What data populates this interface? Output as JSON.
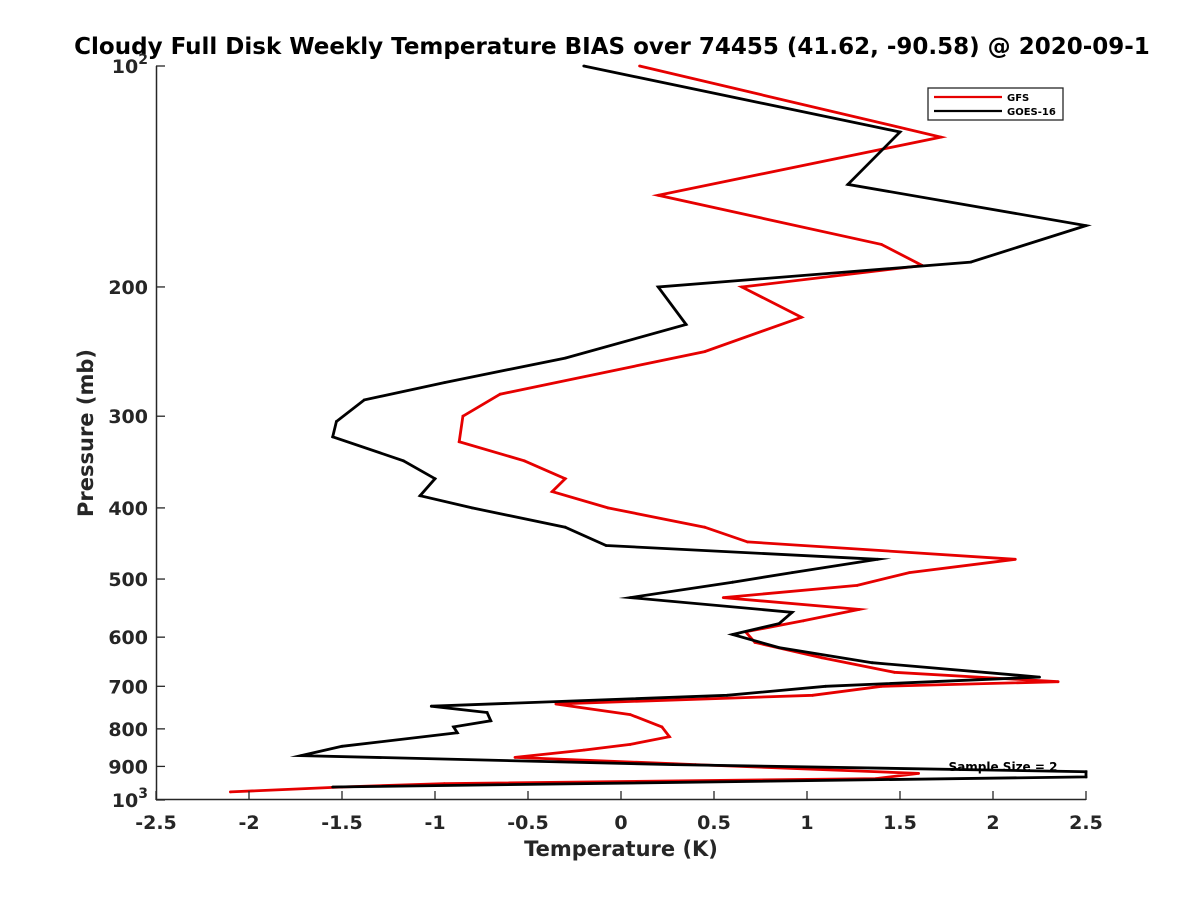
{
  "chart_data": {
    "type": "line",
    "title": "Cloudy Full Disk Weekly Temperature BIAS over 74455 (41.62, -90.58) @ 2020-09-1",
    "xlabel": "Temperature (K)",
    "ylabel": "Pressure (mb)",
    "xlim": [
      -2.5,
      2.5
    ],
    "ylim": [
      100,
      1000
    ],
    "yscale": "log",
    "y_reversed": true,
    "grid": false,
    "legend_position": "top-right",
    "xticks": [
      -2.5,
      -2,
      -1.5,
      -1,
      -0.5,
      0,
      0.5,
      1,
      1.5,
      2,
      2.5
    ],
    "xtick_labels": [
      "-2.5",
      "-2",
      "-1.5",
      "-1",
      "-0.5",
      "0",
      "0.5",
      "1",
      "1.5",
      "2",
      "2.5"
    ],
    "yticks": [
      100,
      200,
      300,
      400,
      500,
      600,
      700,
      800,
      900,
      1000
    ],
    "ytick_labels": [
      {
        "base": "10",
        "exp": "2"
      },
      {
        "base": "200",
        "exp": ""
      },
      {
        "base": "300",
        "exp": ""
      },
      {
        "base": "400",
        "exp": ""
      },
      {
        "base": "500",
        "exp": ""
      },
      {
        "base": "600",
        "exp": ""
      },
      {
        "base": "700",
        "exp": ""
      },
      {
        "base": "800",
        "exp": ""
      },
      {
        "base": "900",
        "exp": ""
      },
      {
        "base": "10",
        "exp": "3"
      }
    ],
    "annotation": "Sample Size = 2",
    "series": [
      {
        "name": "GFS",
        "color": "#e60000",
        "points": [
          [
            0.1,
            100
          ],
          [
            1.72,
            125
          ],
          [
            0.2,
            150
          ],
          [
            1.4,
            175
          ],
          [
            1.62,
            187
          ],
          [
            0.65,
            200
          ],
          [
            0.97,
            220
          ],
          [
            0.45,
            245
          ],
          [
            -0.65,
            280
          ],
          [
            -0.85,
            300
          ],
          [
            -0.87,
            325
          ],
          [
            -0.52,
            345
          ],
          [
            -0.3,
            365
          ],
          [
            -0.37,
            380
          ],
          [
            -0.07,
            400
          ],
          [
            0.45,
            425
          ],
          [
            0.68,
            445
          ],
          [
            2.12,
            470
          ],
          [
            1.55,
            490
          ],
          [
            1.27,
            510
          ],
          [
            0.55,
            530
          ],
          [
            1.28,
            550
          ],
          [
            0.98,
            570
          ],
          [
            0.67,
            590
          ],
          [
            0.72,
            610
          ],
          [
            1.08,
            640
          ],
          [
            1.47,
            670
          ],
          [
            2.35,
            690
          ],
          [
            1.4,
            700
          ],
          [
            1.03,
            720
          ],
          [
            -0.35,
            740
          ],
          [
            0.05,
            765
          ],
          [
            0.22,
            795
          ],
          [
            0.26,
            820
          ],
          [
            0.05,
            840
          ],
          [
            -0.2,
            855
          ],
          [
            -0.57,
            875
          ],
          [
            0.4,
            895
          ],
          [
            1.6,
            920
          ],
          [
            1.37,
            935
          ],
          [
            -0.95,
            950
          ],
          [
            -1.5,
            960
          ],
          [
            -2.1,
            975
          ]
        ]
      },
      {
        "name": "GOES-16",
        "color": "#000000",
        "points": [
          [
            -0.2,
            100
          ],
          [
            1.5,
            123
          ],
          [
            1.22,
            145
          ],
          [
            2.5,
            165
          ],
          [
            1.88,
            185
          ],
          [
            0.2,
            200
          ],
          [
            0.35,
            225
          ],
          [
            -0.3,
            250
          ],
          [
            -0.95,
            270
          ],
          [
            -1.38,
            285
          ],
          [
            -1.53,
            305
          ],
          [
            -1.55,
            320
          ],
          [
            -1.17,
            345
          ],
          [
            -1.0,
            365
          ],
          [
            -1.08,
            385
          ],
          [
            -0.8,
            400
          ],
          [
            -0.3,
            425
          ],
          [
            -0.08,
            450
          ],
          [
            1.38,
            470
          ],
          [
            0.92,
            490
          ],
          [
            0.6,
            505
          ],
          [
            0.05,
            530
          ],
          [
            0.92,
            555
          ],
          [
            0.85,
            575
          ],
          [
            0.6,
            595
          ],
          [
            0.85,
            620
          ],
          [
            1.35,
            650
          ],
          [
            2.25,
            680
          ],
          [
            1.1,
            700
          ],
          [
            0.57,
            720
          ],
          [
            -1.02,
            745
          ],
          [
            -0.72,
            760
          ],
          [
            -0.7,
            780
          ],
          [
            -0.9,
            795
          ],
          [
            -0.88,
            810
          ],
          [
            -1.5,
            845
          ],
          [
            -1.72,
            870
          ],
          [
            0.28,
            895
          ],
          [
            2.5,
            915
          ],
          [
            2.5,
            930
          ],
          [
            -1.55,
            960
          ]
        ]
      }
    ]
  }
}
